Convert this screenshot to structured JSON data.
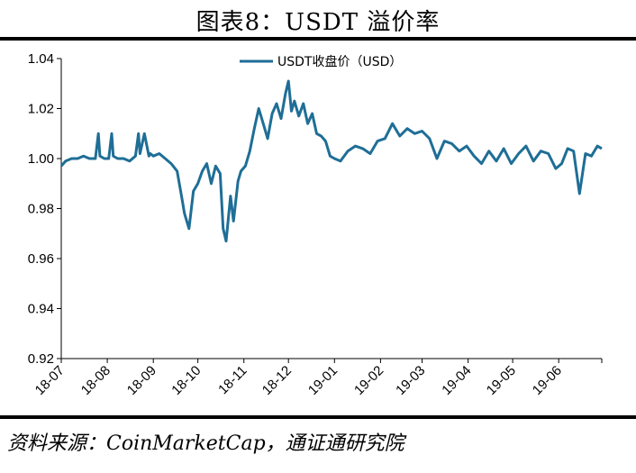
{
  "title": "图表8：USDT 溢价率",
  "source": "资料来源：CoinMarketCap，通证通研究院",
  "chart_data": {
    "type": "line",
    "legend": {
      "label": "USDT收盘价（USD）",
      "position": "top-center"
    },
    "series_color": "#1f6e96",
    "ylim": [
      0.92,
      1.04
    ],
    "yticks": [
      0.92,
      0.94,
      0.96,
      0.98,
      1.0,
      1.02,
      1.04
    ],
    "ytick_labels": [
      "0.92",
      "0.94",
      "0.96",
      "0.98",
      "1.00",
      "1.02",
      "1.04"
    ],
    "xlim": [
      "2018-07-01",
      "2019-06-30"
    ],
    "xtick_dates": [
      "2018-07-01",
      "2018-08-01",
      "2018-09-01",
      "2018-10-01",
      "2018-11-01",
      "2018-12-01",
      "2019-01-01",
      "2019-02-01",
      "2019-03-01",
      "2019-04-01",
      "2019-05-01",
      "2019-06-01"
    ],
    "xtick_labels": [
      "18-07",
      "18-08",
      "18-09",
      "18-10",
      "18-11",
      "18-12",
      "19-01",
      "19-02",
      "19-03",
      "19-04",
      "19-05",
      "19-06"
    ],
    "grid": false,
    "series": [
      {
        "x": [
          "2018-07-01",
          "2018-07-04",
          "2018-07-08",
          "2018-07-12",
          "2018-07-16",
          "2018-07-20",
          "2018-07-24",
          "2018-07-26",
          "2018-07-27",
          "2018-07-30",
          "2018-08-02",
          "2018-08-04",
          "2018-08-05",
          "2018-08-08",
          "2018-08-12",
          "2018-08-16",
          "2018-08-20",
          "2018-08-22",
          "2018-08-23",
          "2018-08-26",
          "2018-08-29",
          "2018-08-30",
          "2018-09-01",
          "2018-09-05",
          "2018-09-09",
          "2018-09-13",
          "2018-09-17",
          "2018-09-20",
          "2018-09-22",
          "2018-09-25",
          "2018-09-28",
          "2018-10-01",
          "2018-10-04",
          "2018-10-07",
          "2018-10-10",
          "2018-10-13",
          "2018-10-16",
          "2018-10-18",
          "2018-10-20",
          "2018-10-23",
          "2018-10-25",
          "2018-10-28",
          "2018-10-30",
          "2018-11-02",
          "2018-11-05",
          "2018-11-08",
          "2018-11-11",
          "2018-11-14",
          "2018-11-17",
          "2018-11-20",
          "2018-11-23",
          "2018-11-26",
          "2018-11-29",
          "2018-12-01",
          "2018-12-03",
          "2018-12-05",
          "2018-12-08",
          "2018-12-11",
          "2018-12-14",
          "2018-12-17",
          "2018-12-20",
          "2018-12-23",
          "2018-12-26",
          "2018-12-29",
          "2019-01-01",
          "2019-01-05",
          "2019-01-10",
          "2019-01-15",
          "2019-01-20",
          "2019-01-25",
          "2019-01-30",
          "2019-02-04",
          "2019-02-09",
          "2019-02-14",
          "2019-02-19",
          "2019-02-24",
          "2019-03-01",
          "2019-03-06",
          "2019-03-11",
          "2019-03-16",
          "2019-03-21",
          "2019-03-26",
          "2019-03-31",
          "2019-04-05",
          "2019-04-10",
          "2019-04-15",
          "2019-04-20",
          "2019-04-25",
          "2019-04-30",
          "2019-05-05",
          "2019-05-10",
          "2019-05-15",
          "2019-05-20",
          "2019-05-25",
          "2019-05-30",
          "2019-06-03",
          "2019-06-07",
          "2019-06-11",
          "2019-06-15",
          "2019-06-19",
          "2019-06-23",
          "2019-06-27",
          "2019-06-30"
        ],
        "y": [
          0.997,
          0.999,
          1.0,
          1.0,
          1.001,
          1.0,
          1.0,
          1.01,
          1.001,
          1.0,
          1.0,
          1.01,
          1.001,
          1.0,
          1.0,
          0.999,
          1.001,
          1.01,
          1.002,
          1.01,
          1.001,
          1.002,
          1.001,
          1.002,
          1.0,
          0.998,
          0.995,
          0.985,
          0.978,
          0.972,
          0.987,
          0.99,
          0.995,
          0.998,
          0.99,
          0.997,
          0.994,
          0.972,
          0.967,
          0.985,
          0.975,
          0.991,
          0.995,
          0.997,
          1.003,
          1.012,
          1.02,
          1.014,
          1.008,
          1.018,
          1.022,
          1.016,
          1.026,
          1.031,
          1.019,
          1.023,
          1.017,
          1.022,
          1.014,
          1.018,
          1.01,
          1.009,
          1.007,
          1.001,
          1.0,
          0.999,
          1.003,
          1.005,
          1.004,
          1.002,
          1.007,
          1.008,
          1.014,
          1.009,
          1.012,
          1.01,
          1.011,
          1.008,
          1.0,
          1.007,
          1.006,
          1.003,
          1.005,
          1.001,
          0.998,
          1.003,
          0.999,
          1.004,
          0.998,
          1.002,
          1.005,
          0.999,
          1.003,
          1.002,
          0.996,
          0.998,
          1.004,
          1.003,
          0.986,
          1.002,
          1.001,
          1.005,
          1.004
        ]
      }
    ]
  }
}
